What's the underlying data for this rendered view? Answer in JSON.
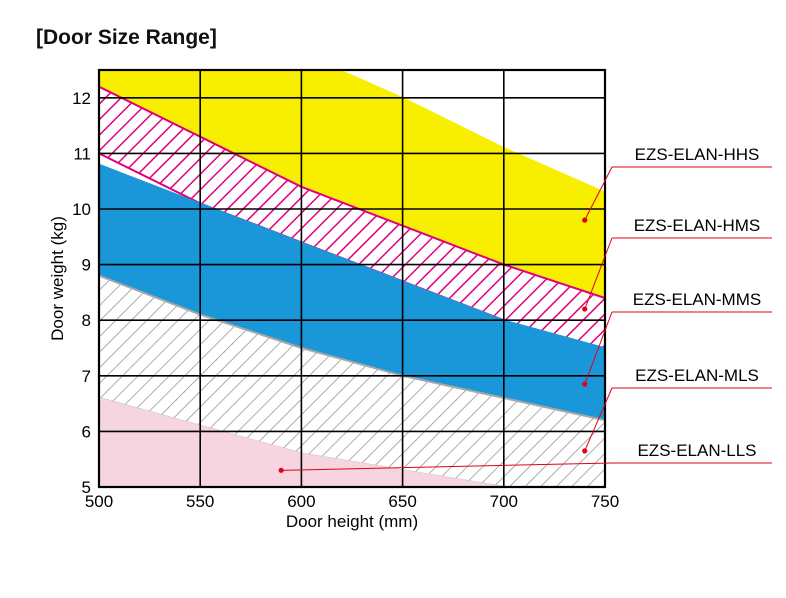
{
  "chart_data": {
    "type": "area",
    "title": "[Door Size Range]",
    "xlabel": "Door height (mm)",
    "ylabel": "Door weight (kg)",
    "xlim": [
      500,
      750
    ],
    "ylim": [
      5,
      12.5
    ],
    "xticks": [
      500,
      550,
      600,
      650,
      700,
      750
    ],
    "yticks": [
      5,
      6,
      7,
      8,
      9,
      10,
      11,
      12
    ],
    "grid": true,
    "x": [
      500,
      550,
      600,
      650,
      700,
      750
    ],
    "series": [
      {
        "name": "EZS-ELAN-HHS",
        "fill": "solid",
        "color": "#f7ee00",
        "upper": [
          12.8,
          12.8,
          12.8,
          12.0,
          11.1,
          10.3
        ],
        "lower": [
          12.2,
          11.3,
          10.4,
          9.7,
          9.0,
          8.4
        ]
      },
      {
        "name": "EZS-ELAN-HMS",
        "fill": "hatched",
        "color": "#e0007d",
        "upper": [
          12.2,
          11.3,
          10.4,
          9.7,
          9.0,
          8.4
        ],
        "lower": [
          11.0,
          10.1,
          9.4,
          8.7,
          8.0,
          7.3
        ]
      },
      {
        "name": "EZS-ELAN-MMS",
        "fill": "solid",
        "color": "#1a97d8",
        "upper": [
          10.8,
          10.1,
          9.4,
          8.7,
          8.0,
          7.5
        ],
        "lower": [
          8.8,
          8.1,
          7.5,
          7.0,
          6.6,
          6.2
        ]
      },
      {
        "name": "EZS-ELAN-MLS",
        "fill": "hatched",
        "color": "#a8a8a8",
        "upper": [
          8.8,
          8.1,
          7.5,
          7.0,
          6.6,
          6.2
        ],
        "lower": [
          6.6,
          6.1,
          5.6,
          5.3,
          5.0,
          5.0
        ]
      },
      {
        "name": "EZS-ELAN-LLS",
        "fill": "solid",
        "color": "#f6d4e0",
        "upper": [
          6.6,
          6.1,
          5.6,
          5.3,
          5.0,
          5.0
        ],
        "lower": [
          5.0,
          5.0,
          5.0,
          5.0,
          5.0,
          5.0
        ]
      }
    ],
    "legend": [
      {
        "label": "EZS-ELAN-HHS",
        "marker": [
          740,
          9.8
        ]
      },
      {
        "label": "EZS-ELAN-HMS",
        "marker": [
          740,
          8.2
        ]
      },
      {
        "label": "EZS-ELAN-MMS",
        "marker": [
          740,
          6.85
        ]
      },
      {
        "label": "EZS-ELAN-MLS",
        "marker": [
          740,
          5.65
        ]
      },
      {
        "label": "EZS-ELAN-LLS",
        "marker": [
          590,
          5.3
        ]
      }
    ],
    "legend_placement": "right",
    "leader_color": "#e2001a"
  }
}
